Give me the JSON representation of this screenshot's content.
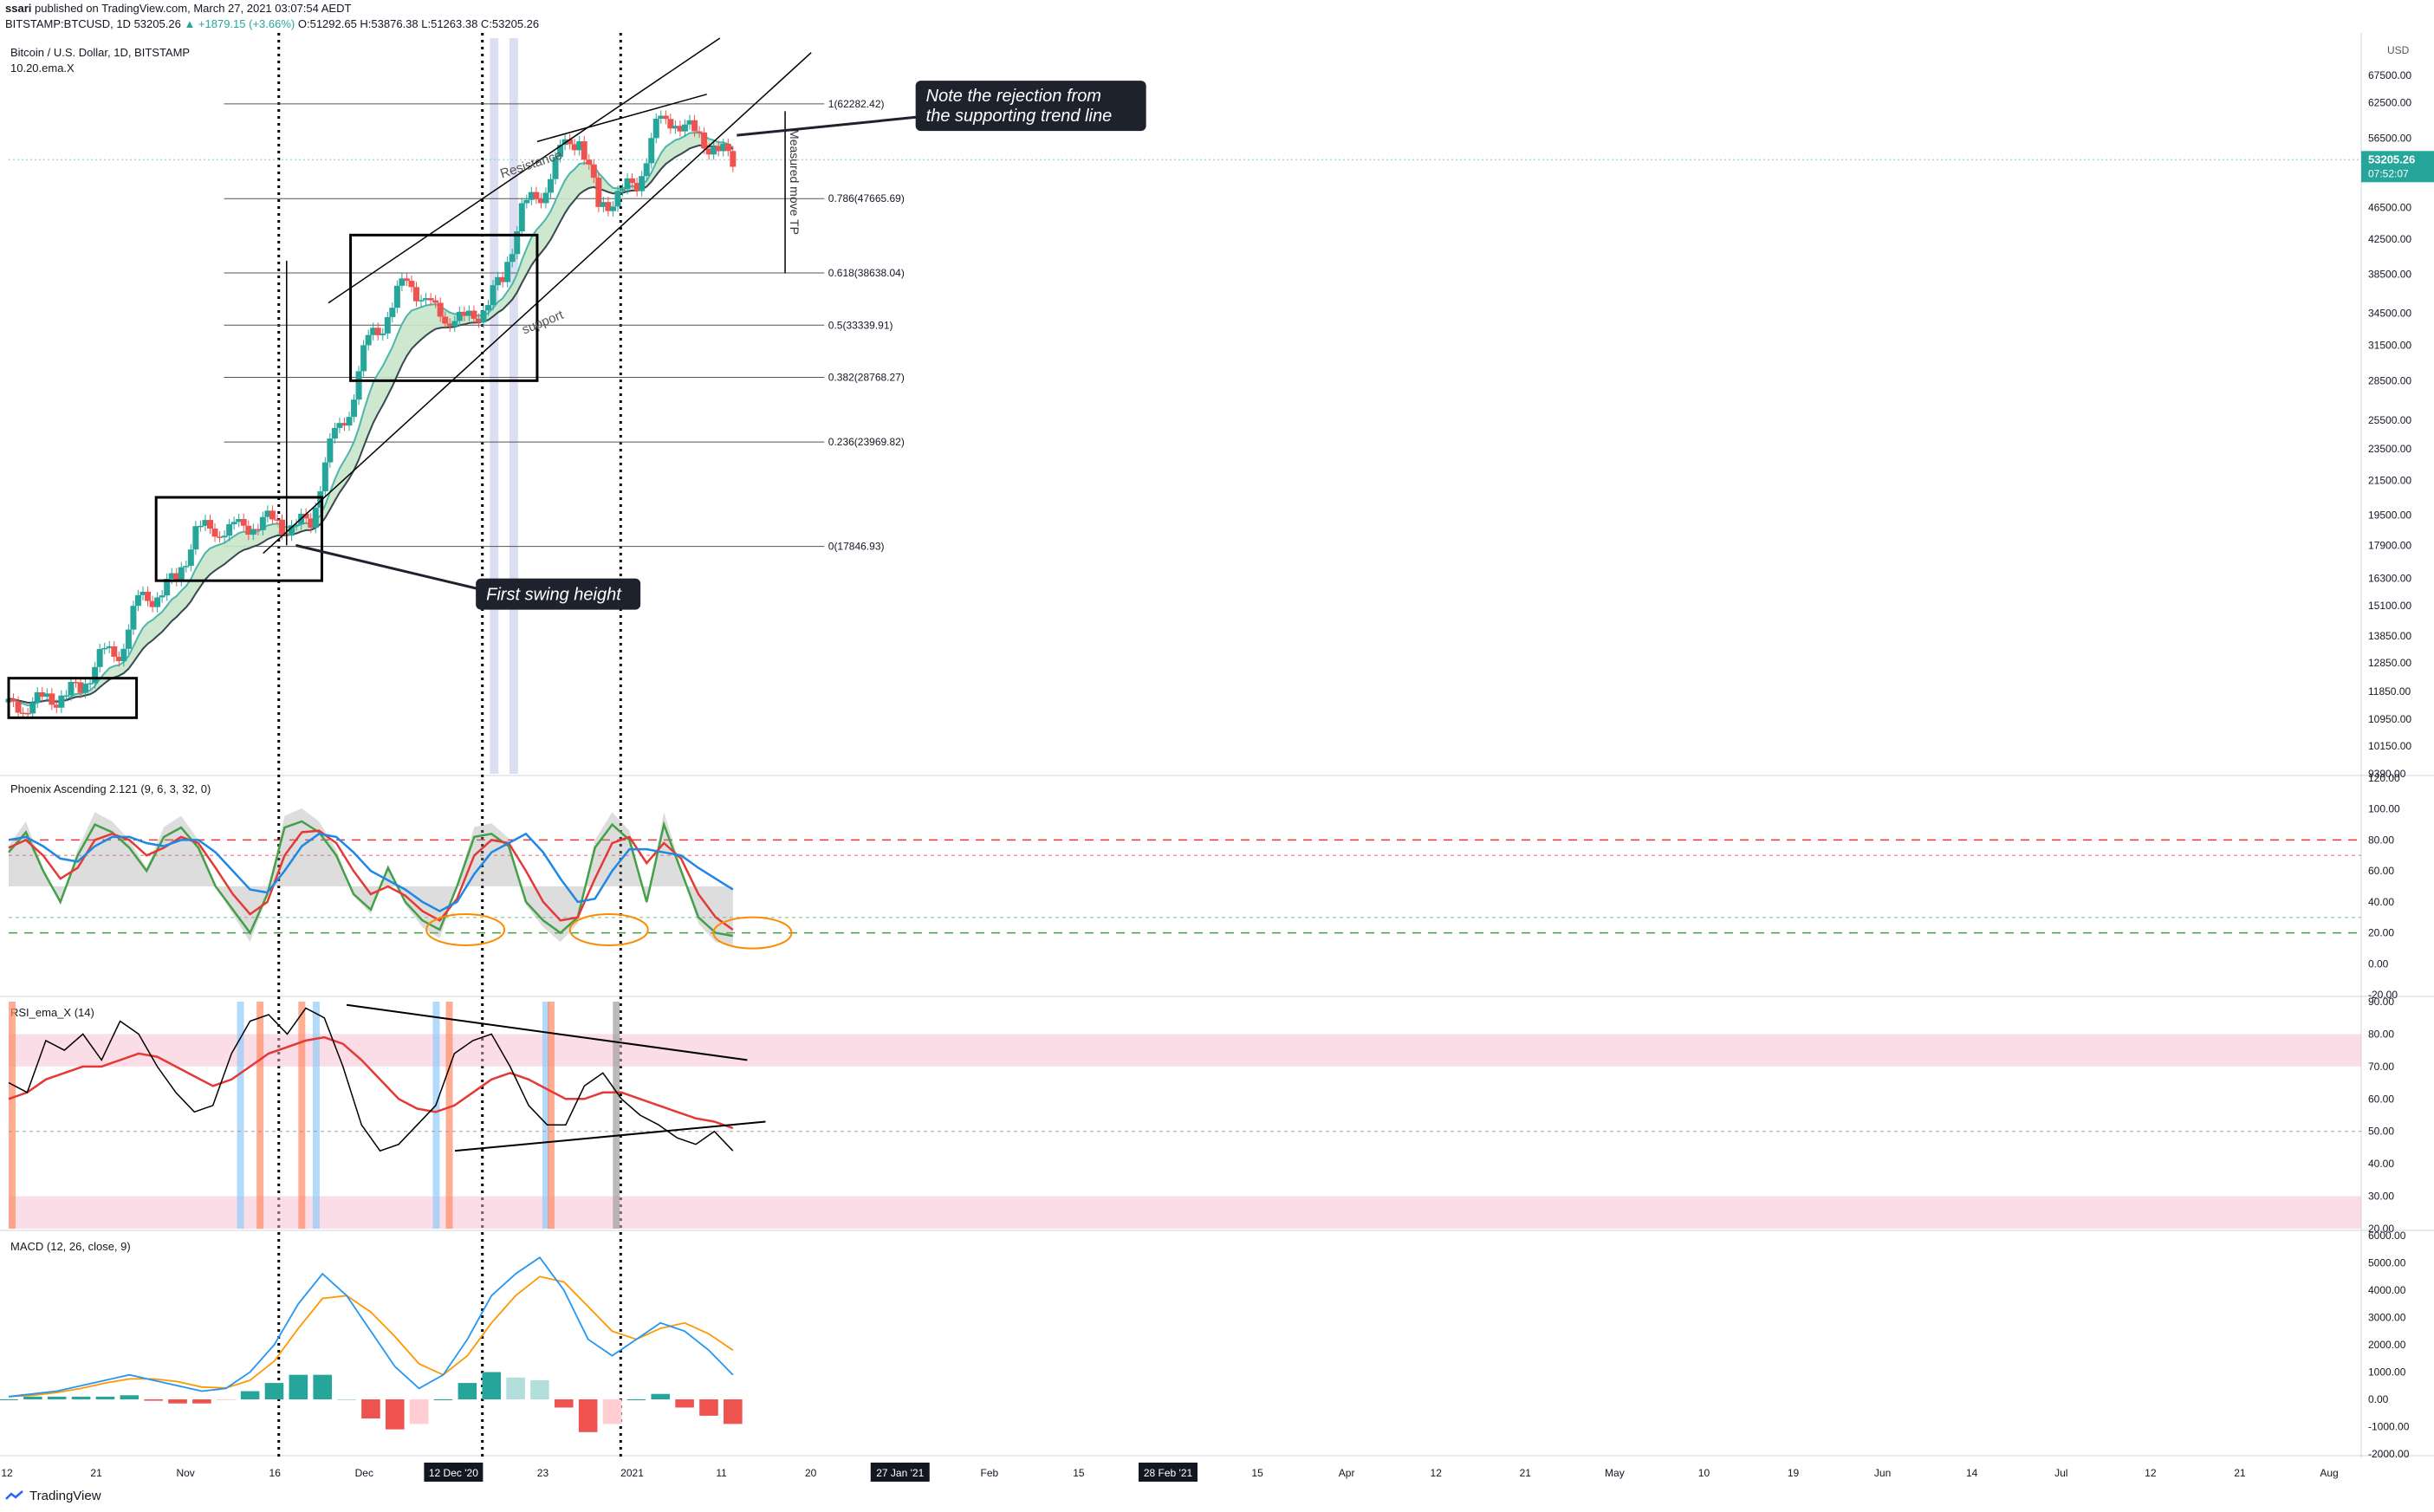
{
  "header": {
    "author": "ssari",
    "published": "published on TradingView.com, March 27, 2021 03:07:54 AEDT",
    "symbol": "BITSTAMP:BTCUSD, 1D",
    "last": "53205.26",
    "change": "▲ +1879.15 (+3.66%)",
    "ohlc": "O:51292.65 H:53876.38 L:51263.38 C:53205.26"
  },
  "footer": {
    "brand": "TradingView"
  },
  "colors": {
    "up": "#26a69a",
    "down": "#ef5350",
    "ema_fill": "#c8e6c9",
    "accent": "#2196f3"
  },
  "chart_data": [
    {
      "type": "candlestick",
      "title": "Bitcoin / U.S. Dollar, 1D, BITSTAMP",
      "subtitle": "10.20.ema.X",
      "currency": "USD",
      "scale": "log",
      "ylim": [
        9390,
        75000
      ],
      "y_ticks": [
        9390,
        10150,
        10950,
        11850,
        12850,
        13850,
        15100,
        16300,
        17900,
        19500,
        21500,
        23500,
        25500,
        28500,
        31500,
        34500,
        38500,
        42500,
        46500,
        50500,
        56500,
        62500,
        67500,
        75000
      ],
      "last_price": "53205.26",
      "countdown": "07:52:07",
      "fib_levels": [
        {
          "label": "1(62282.42)",
          "value": 62282.42
        },
        {
          "label": "0.786(47665.69)",
          "value": 47665.69
        },
        {
          "label": "0.618(38638.04)",
          "value": 38638.04
        },
        {
          "label": "0.5(33339.91)",
          "value": 33339.91
        },
        {
          "label": "0.382(28768.27)",
          "value": 28768.27
        },
        {
          "label": "0.236(23969.82)",
          "value": 23969.82
        },
        {
          "label": "0(17846.93)",
          "value": 17846.93
        }
      ],
      "closes_weekly": [
        11450,
        11500,
        11700,
        12000,
        13000,
        13300,
        15200,
        15600,
        16300,
        18500,
        18900,
        18600,
        19100,
        19200,
        18700,
        19300,
        23500,
        26400,
        32000,
        34000,
        38500,
        35000,
        34500,
        33500,
        35000,
        38000,
        46000,
        48500,
        54000,
        57000,
        46500,
        48000,
        50000,
        58000,
        60000,
        57000,
        55000,
        53205
      ],
      "annotations": [
        {
          "text": "Resistance"
        },
        {
          "text": "support"
        },
        {
          "text": "Measured move TP"
        },
        {
          "text": "Note the rejection from"
        },
        {
          "text": "the supporting trend line"
        },
        {
          "text": "First swing height"
        }
      ]
    },
    {
      "type": "line",
      "title": "Phoenix Ascending 2.121 (9, 6, 3, 32, 0)",
      "ylim": [
        -20,
        120
      ],
      "y_ticks": [
        -20,
        0,
        20,
        40,
        60,
        80,
        100,
        120
      ],
      "series": [
        {
          "color": "#43a047",
          "values": [
            72,
            85,
            60,
            40,
            70,
            90,
            85,
            75,
            60,
            82,
            88,
            75,
            50,
            35,
            20,
            45,
            88,
            92,
            85,
            70,
            45,
            35,
            62,
            40,
            28,
            22,
            50,
            82,
            84,
            76,
            40,
            28,
            20,
            30,
            75,
            90,
            80,
            40,
            90,
            60,
            30,
            20,
            18
          ]
        },
        {
          "color": "#e53935",
          "values": [
            75,
            80,
            70,
            55,
            62,
            80,
            84,
            80,
            70,
            75,
            82,
            78,
            62,
            45,
            32,
            40,
            70,
            85,
            86,
            78,
            60,
            45,
            50,
            44,
            34,
            28,
            42,
            70,
            80,
            78,
            60,
            40,
            28,
            30,
            55,
            78,
            82,
            65,
            78,
            68,
            45,
            30,
            22
          ]
        },
        {
          "color": "#1e88e5",
          "values": [
            80,
            82,
            76,
            68,
            66,
            76,
            82,
            82,
            78,
            76,
            80,
            80,
            72,
            60,
            48,
            46,
            60,
            76,
            84,
            82,
            72,
            60,
            54,
            48,
            40,
            34,
            40,
            58,
            72,
            78,
            84,
            72,
            55,
            40,
            42,
            60,
            74,
            74,
            72,
            70,
            62,
            55,
            48
          ]
        }
      ]
    },
    {
      "type": "line",
      "title": "RSI_ema_X (14)",
      "ylim": [
        20,
        90
      ],
      "y_ticks": [
        20,
        30,
        40,
        50,
        60,
        70,
        80,
        90
      ],
      "values": [
        65,
        62,
        78,
        75,
        80,
        72,
        84,
        80,
        70,
        62,
        56,
        58,
        74,
        84,
        86,
        80,
        88,
        85,
        70,
        52,
        44,
        46,
        52,
        58,
        74,
        78,
        80,
        70,
        58,
        52,
        52,
        64,
        68,
        60,
        55,
        52,
        48,
        46,
        50,
        44
      ],
      "signal_values": [
        60,
        62,
        66,
        68,
        70,
        70,
        72,
        74,
        73,
        70,
        67,
        64,
        66,
        70,
        74,
        76,
        78,
        79,
        77,
        72,
        66,
        60,
        57,
        56,
        58,
        62,
        66,
        68,
        66,
        63,
        60,
        60,
        62,
        62,
        60,
        58,
        56,
        54,
        53,
        51
      ]
    },
    {
      "type": "bar",
      "title": "MACD (12, 26, close, 9)",
      "ylim": [
        -2000,
        6000
      ],
      "y_ticks": [
        -2000,
        -1000,
        0,
        1000,
        2000,
        3000,
        4000,
        5000,
        6000
      ],
      "macd": [
        100,
        200,
        300,
        500,
        700,
        900,
        700,
        500,
        300,
        400,
        1000,
        2000,
        3500,
        4600,
        3800,
        2500,
        1200,
        400,
        900,
        2200,
        3800,
        4600,
        5200,
        4000,
        2200,
        1600,
        2200,
        2800,
        2500,
        1800,
        900
      ],
      "signal": [
        100,
        150,
        250,
        400,
        600,
        750,
        750,
        650,
        450,
        420,
        700,
        1400,
        2600,
        3700,
        3800,
        3200,
        2300,
        1300,
        900,
        1600,
        2800,
        3800,
        4500,
        4300,
        3400,
        2500,
        2200,
        2600,
        2800,
        2400,
        1800
      ],
      "histogram": [
        0,
        100,
        100,
        100,
        100,
        150,
        -50,
        -150,
        -150,
        -20,
        300,
        600,
        900,
        900,
        0,
        -700,
        -1100,
        -900,
        0,
        600,
        1000,
        800,
        700,
        -300,
        -1200,
        -900,
        0,
        200,
        -300,
        -600,
        -900
      ]
    }
  ],
  "x_axis": [
    "12",
    "21",
    "Nov",
    "16",
    "Dec",
    "12 Dec '20",
    "23",
    "2021",
    "11",
    "20",
    "27 Jan '21",
    "Feb",
    "15",
    "28 Feb '21",
    "15",
    "Apr",
    "12",
    "21",
    "May",
    "10",
    "19",
    "Jun",
    "14",
    "Jul",
    "12",
    "21",
    "Aug"
  ]
}
